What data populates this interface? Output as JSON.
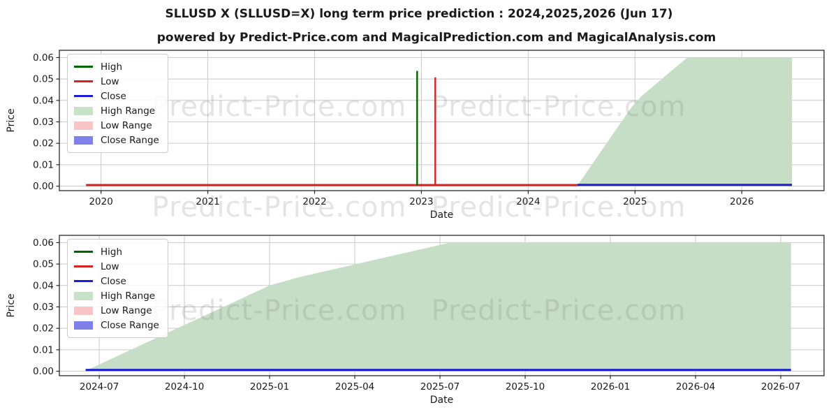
{
  "page": {
    "title": "SLLUSD X (SLLUSD=X) long term price prediction : 2024,2025,2026 (Jun 17)",
    "subtitle": "powered by Predict-Price.com and MagicalPrediction.com and MagicalAnalysis.com"
  },
  "watermark": {
    "text": "Predict-Price.com"
  },
  "colors": {
    "high": "#006400",
    "low": "#d62121",
    "close": "#1c1cd6",
    "high_range": "#c5dec5",
    "high_range_patch": "#c8e2c8",
    "low_range_patch": "#f7c5c5",
    "close_range_patch": "#8081e8",
    "grid": "#c9c9c9",
    "spine": "#262626",
    "text": "#1a1a1a",
    "watermark": "rgba(120,120,120,0.20)"
  },
  "legend": {
    "items": [
      {
        "label": "High",
        "swatch": "line",
        "color": "high"
      },
      {
        "label": "Low",
        "swatch": "line",
        "color": "low"
      },
      {
        "label": "Close",
        "swatch": "line",
        "color": "close"
      },
      {
        "label": "High Range",
        "swatch": "patch",
        "color": "high_range_patch"
      },
      {
        "label": "Low Range",
        "swatch": "patch",
        "color": "low_range_patch"
      },
      {
        "label": "Close Range",
        "swatch": "patch",
        "color": "close_range_patch"
      }
    ]
  },
  "chart_data": [
    {
      "id": "long-term-history-and-prediction",
      "type": "line",
      "xlabel": "Date",
      "ylabel": "Price",
      "grid": true,
      "legend_position": "upper left",
      "xlim": [
        2019.61,
        2026.77
      ],
      "ylim": [
        -0.0021,
        0.0634
      ],
      "x_ticks": [
        {
          "v": 2020,
          "label": "2020"
        },
        {
          "v": 2021,
          "label": "2021"
        },
        {
          "v": 2022,
          "label": "2022"
        },
        {
          "v": 2023,
          "label": "2023"
        },
        {
          "v": 2024,
          "label": "2024"
        },
        {
          "v": 2025,
          "label": "2025"
        },
        {
          "v": 2026,
          "label": "2026"
        }
      ],
      "y_ticks": [
        {
          "v": 0.0,
          "label": "0.00"
        },
        {
          "v": 0.01,
          "label": "0.01"
        },
        {
          "v": 0.02,
          "label": "0.02"
        },
        {
          "v": 0.03,
          "label": "0.03"
        },
        {
          "v": 0.04,
          "label": "0.04"
        },
        {
          "v": 0.05,
          "label": "0.05"
        },
        {
          "v": 0.06,
          "label": "0.06"
        }
      ],
      "series": [
        {
          "name": "High Range",
          "kind": "area",
          "color": "high_range",
          "points": [
            [
              2024.46,
              0.0002
            ],
            [
              2024.97,
              0.037
            ],
            [
              2025.06,
              0.042
            ],
            [
              2025.49,
              0.06
            ],
            [
              2026.47,
              0.06
            ]
          ],
          "annotation": "predicted high range rises from 0 in mid-2024 to 0.06 by mid-2025, flat to mid-2026"
        },
        {
          "name": "Low",
          "kind": "line",
          "color": "low",
          "width": 3,
          "points": [
            [
              2019.86,
              0.0005
            ],
            [
              2024.46,
              0.0005
            ]
          ],
          "annotation": "historical low ~0.00 from late 2019 to mid 2024"
        },
        {
          "name": "High",
          "kind": "line",
          "color": "high",
          "width": 2.4,
          "points": [
            [
              2022.96,
              0.0005
            ],
            [
              2022.96,
              0.0538
            ]
          ],
          "annotation": "single-day high spike to ~0.054 near Jan 2023"
        },
        {
          "name": "Low spike",
          "kind": "line",
          "color": "low",
          "width": 2.4,
          "points": [
            [
              2023.13,
              0.0005
            ],
            [
              2023.13,
              0.0508
            ]
          ],
          "annotation": "single-day low spike to ~0.051 near Feb 2023"
        },
        {
          "name": "Close",
          "kind": "line",
          "color": "close",
          "width": 3,
          "points": [
            [
              2024.46,
              0.0006
            ],
            [
              2026.47,
              0.0006
            ]
          ],
          "annotation": "predicted close ~0.00 mid-2024 to mid-2026"
        }
      ]
    },
    {
      "id": "prediction-window-2024-2026",
      "type": "line",
      "xlabel": "Date",
      "ylabel": "Price",
      "grid": true,
      "legend_position": "upper left",
      "xlim": [
        2024.383,
        2026.627
      ],
      "ylim": [
        -0.0021,
        0.0634
      ],
      "x_ticks": [
        {
          "v": 2024.5,
          "label": "2024-07"
        },
        {
          "v": 2024.75,
          "label": "2024-10"
        },
        {
          "v": 2025.0,
          "label": "2025-01"
        },
        {
          "v": 2025.25,
          "label": "2025-04"
        },
        {
          "v": 2025.5,
          "label": "2025-07"
        },
        {
          "v": 2025.75,
          "label": "2025-10"
        },
        {
          "v": 2026.0,
          "label": "2026-01"
        },
        {
          "v": 2026.25,
          "label": "2026-04"
        },
        {
          "v": 2026.5,
          "label": "2026-07"
        }
      ],
      "y_ticks": [
        {
          "v": 0.0,
          "label": "0.00"
        },
        {
          "v": 0.01,
          "label": "0.01"
        },
        {
          "v": 0.02,
          "label": "0.02"
        },
        {
          "v": 0.03,
          "label": "0.03"
        },
        {
          "v": 0.04,
          "label": "0.04"
        },
        {
          "v": 0.05,
          "label": "0.05"
        },
        {
          "v": 0.06,
          "label": "0.06"
        }
      ],
      "series": [
        {
          "name": "High Range",
          "kind": "area",
          "color": "high_range",
          "points": [
            [
              2024.46,
              0.0002
            ],
            [
              2025.0,
              0.04
            ],
            [
              2025.09,
              0.044
            ],
            [
              2025.53,
              0.06
            ],
            [
              2026.53,
              0.06
            ]
          ],
          "annotation": "predicted high range: 0 at 2024-06, ~0.04 at 2025-01, 0.06 from ~2025-07 to 2026-06"
        },
        {
          "name": "Close",
          "kind": "line",
          "color": "close",
          "width": 3,
          "points": [
            [
              2024.46,
              0.0006
            ],
            [
              2026.53,
              0.0006
            ]
          ],
          "annotation": "predicted close ~0.00 across full window"
        }
      ]
    }
  ]
}
